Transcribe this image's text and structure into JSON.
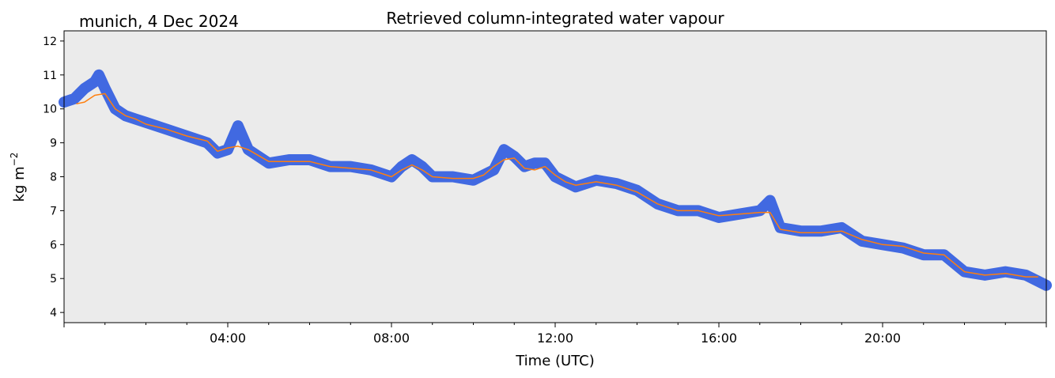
{
  "chart_data": {
    "type": "scatter",
    "title": "Retrieved column-integrated water vapour",
    "subtitle": "munich, 4 Dec 2024",
    "xlabel": "Time (UTC)",
    "ylabel_base": "kg m",
    "ylabel_exp": "−2",
    "x_unit": "hours UTC",
    "xlim": [
      0,
      24
    ],
    "ylim": [
      3.7,
      12.3
    ],
    "x_ticks": [
      4,
      8,
      12,
      16,
      20
    ],
    "x_tick_labels": [
      "04:00",
      "08:00",
      "12:00",
      "16:00",
      "20:00"
    ],
    "y_ticks": [
      4,
      5,
      6,
      7,
      8,
      9,
      10,
      11,
      12
    ],
    "y_tick_labels": [
      "4",
      "5",
      "6",
      "7",
      "8",
      "9",
      "10",
      "11",
      "12"
    ],
    "grid": false,
    "background": "#ebebeb",
    "colors": {
      "raw": "#4169e1",
      "smoothed": "#ff7f0e"
    },
    "series": [
      {
        "style": "points",
        "x": [
          0.0,
          0.25,
          0.5,
          0.75,
          0.85,
          1.0,
          1.25,
          1.5,
          1.75,
          2.0,
          2.5,
          3.0,
          3.5,
          3.75,
          4.0,
          4.25,
          4.5,
          5.0,
          5.5,
          6.0,
          6.5,
          7.0,
          7.5,
          8.0,
          8.25,
          8.5,
          8.75,
          9.0,
          9.5,
          10.0,
          10.5,
          10.75,
          11.0,
          11.25,
          11.5,
          11.75,
          12.0,
          12.5,
          13.0,
          13.5,
          14.0,
          14.5,
          15.0,
          15.5,
          16.0,
          16.5,
          17.0,
          17.25,
          17.5,
          18.0,
          18.5,
          19.0,
          19.5,
          20.0,
          20.5,
          21.0,
          21.5,
          22.0,
          22.5,
          23.0,
          23.5,
          24.0
        ],
        "y": [
          10.2,
          10.3,
          10.6,
          10.8,
          11.0,
          10.6,
          10.0,
          9.8,
          9.7,
          9.6,
          9.4,
          9.2,
          9.0,
          8.7,
          8.8,
          9.5,
          8.8,
          8.4,
          8.5,
          8.5,
          8.3,
          8.3,
          8.2,
          8.0,
          8.3,
          8.5,
          8.3,
          8.0,
          8.0,
          7.9,
          8.2,
          8.8,
          8.6,
          8.3,
          8.4,
          8.4,
          8.0,
          7.7,
          7.9,
          7.8,
          7.6,
          7.2,
          7.0,
          7.0,
          6.8,
          6.9,
          7.0,
          7.3,
          6.5,
          6.4,
          6.4,
          6.5,
          6.1,
          6.0,
          5.9,
          5.7,
          5.7,
          5.2,
          5.1,
          5.2,
          5.1,
          4.8
        ]
      },
      {
        "style": "line",
        "x": [
          0.3,
          0.5,
          0.75,
          1.0,
          1.25,
          1.5,
          1.75,
          2.0,
          2.5,
          3.0,
          3.5,
          3.75,
          4.0,
          4.25,
          4.5,
          5.0,
          5.5,
          6.0,
          6.5,
          7.0,
          7.5,
          8.0,
          8.25,
          8.5,
          8.75,
          9.0,
          9.5,
          10.0,
          10.25,
          10.5,
          10.75,
          11.0,
          11.25,
          11.5,
          11.75,
          12.0,
          12.25,
          12.5,
          13.0,
          13.5,
          14.0,
          14.5,
          15.0,
          15.5,
          16.0,
          16.5,
          17.0,
          17.25,
          17.5,
          18.0,
          18.5,
          19.0,
          19.5,
          20.0,
          20.5,
          21.0,
          21.5,
          22.0,
          22.5,
          23.0,
          23.5,
          23.8
        ],
        "y": [
          10.15,
          10.2,
          10.4,
          10.45,
          10.0,
          9.8,
          9.7,
          9.55,
          9.4,
          9.2,
          9.05,
          8.75,
          8.85,
          8.9,
          8.8,
          8.45,
          8.45,
          8.45,
          8.3,
          8.25,
          8.2,
          8.0,
          8.2,
          8.35,
          8.2,
          8.0,
          7.95,
          7.95,
          8.05,
          8.3,
          8.5,
          8.55,
          8.25,
          8.2,
          8.3,
          8.05,
          7.85,
          7.75,
          7.85,
          7.75,
          7.55,
          7.2,
          7.0,
          7.0,
          6.85,
          6.9,
          6.95,
          6.95,
          6.45,
          6.35,
          6.35,
          6.4,
          6.15,
          6.0,
          5.95,
          5.75,
          5.7,
          5.2,
          5.1,
          5.15,
          5.05,
          5.05
        ]
      }
    ]
  }
}
